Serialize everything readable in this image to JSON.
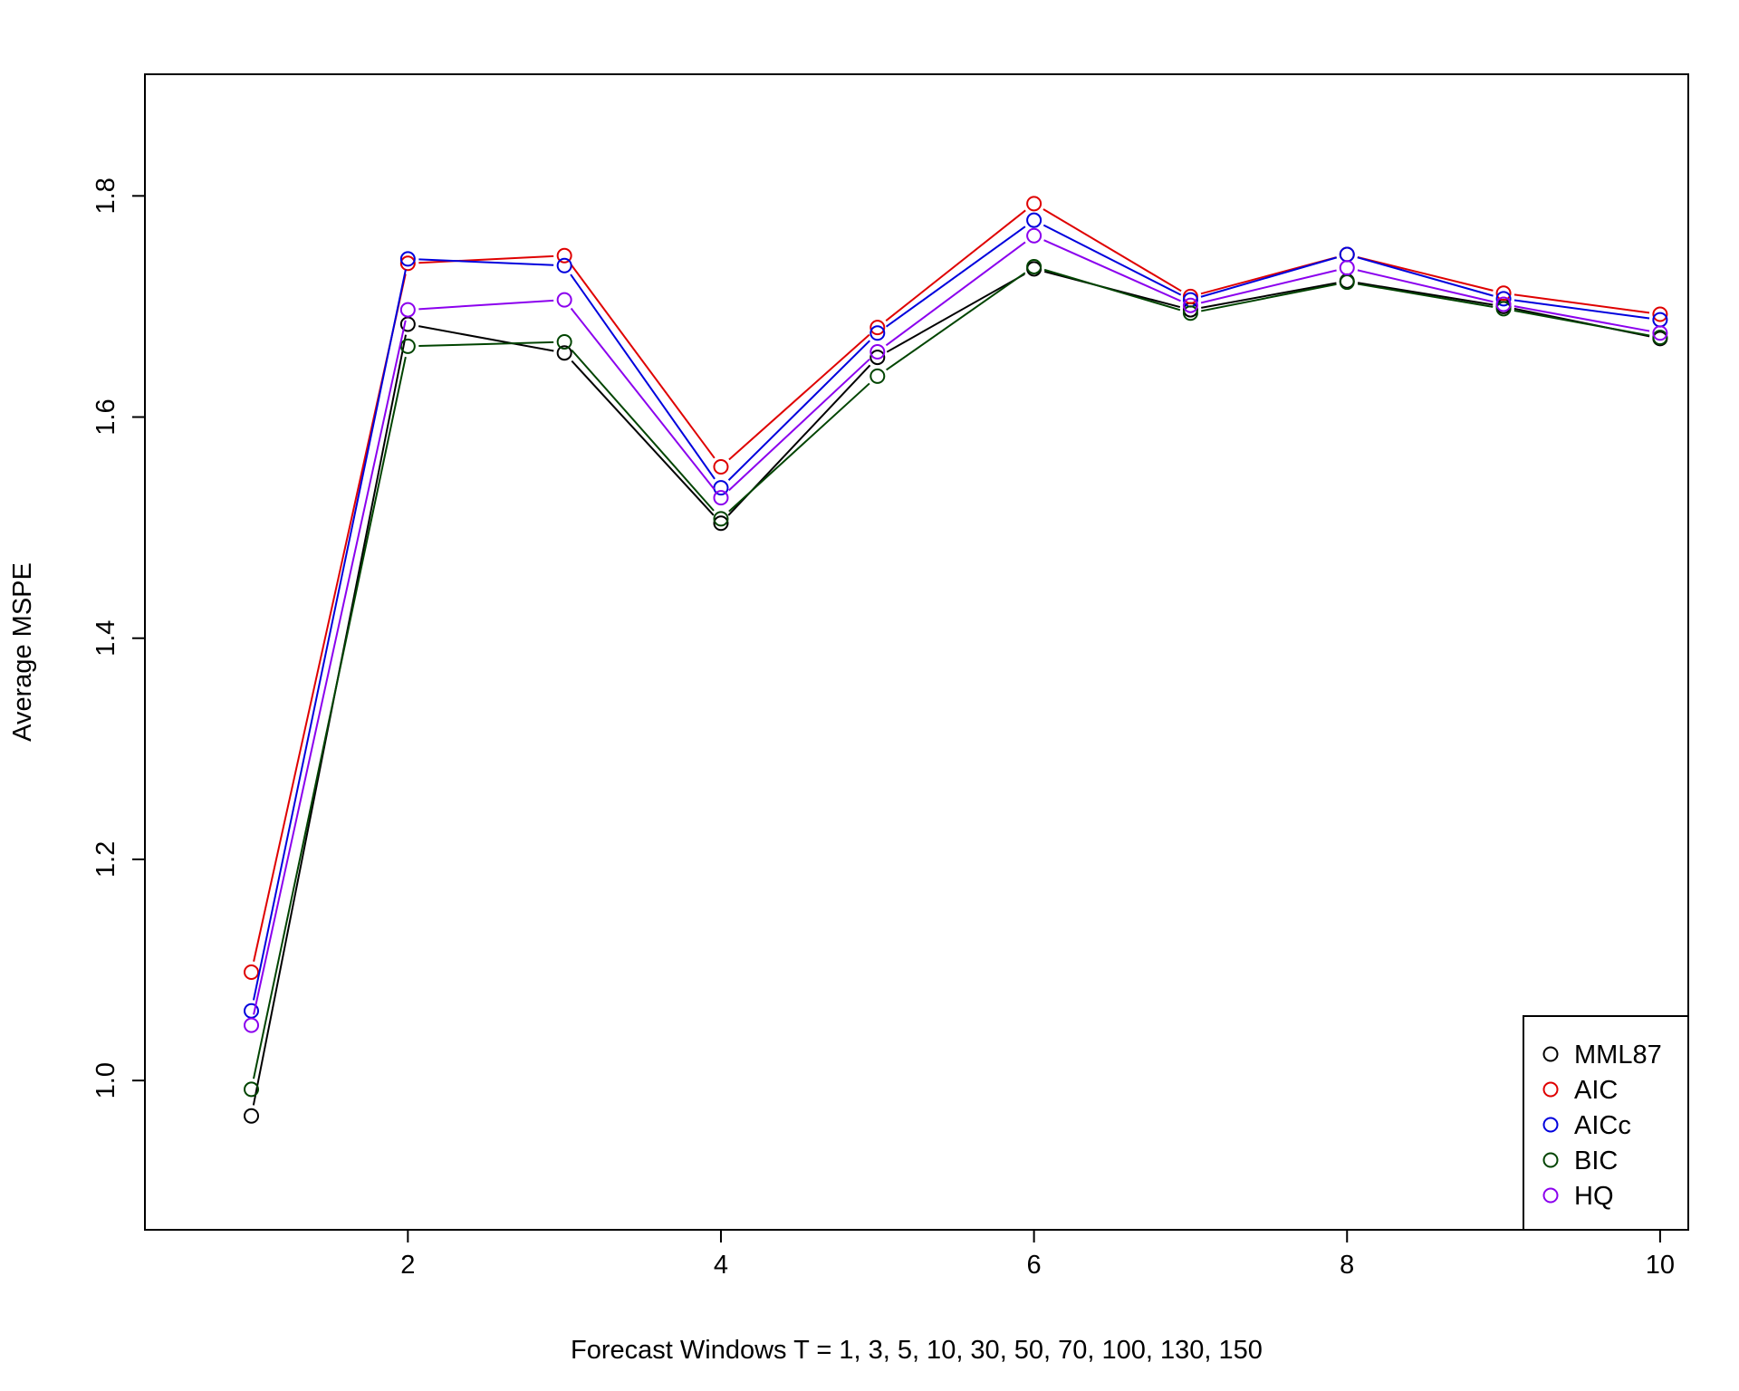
{
  "chart_data": {
    "type": "line",
    "title": "",
    "xlabel": "Forecast Windows T = 1, 3, 5, 10, 30, 50, 70, 100, 130, 150",
    "ylabel": "Average MSPE",
    "x": [
      1,
      2,
      3,
      4,
      5,
      6,
      7,
      8,
      9,
      10
    ],
    "xlim": [
      0.32,
      10.18
    ],
    "ylim": [
      0.865,
      1.91
    ],
    "x_ticks": [
      2,
      4,
      6,
      8,
      10
    ],
    "x_tick_labels": [
      "2",
      "4",
      "6",
      "8",
      "10"
    ],
    "y_ticks": [
      1.0,
      1.2,
      1.4,
      1.6,
      1.8
    ],
    "y_tick_labels": [
      "1.0",
      "1.2",
      "1.4",
      "1.6",
      "1.8"
    ],
    "grid": false,
    "legend_position": "bottom-right",
    "marker": "open-circle",
    "series": [
      {
        "name": "MML87",
        "color": "#000000",
        "values": [
          0.968,
          1.684,
          1.658,
          1.504,
          1.654,
          1.734,
          1.697,
          1.723,
          1.7,
          1.671
        ]
      },
      {
        "name": "AIC",
        "color": "#df0000",
        "values": [
          1.098,
          1.739,
          1.746,
          1.555,
          1.681,
          1.793,
          1.709,
          1.747,
          1.712,
          1.693
        ]
      },
      {
        "name": "AICc",
        "color": "#0000dd",
        "values": [
          1.063,
          1.743,
          1.737,
          1.536,
          1.676,
          1.778,
          1.706,
          1.747,
          1.707,
          1.688
        ]
      },
      {
        "name": "BIC",
        "color": "#004400",
        "values": [
          0.992,
          1.664,
          1.668,
          1.508,
          1.637,
          1.736,
          1.694,
          1.722,
          1.698,
          1.672
        ]
      },
      {
        "name": "HQ",
        "color": "#8b00ee",
        "values": [
          1.05,
          1.697,
          1.706,
          1.527,
          1.659,
          1.764,
          1.701,
          1.735,
          1.702,
          1.676
        ]
      }
    ]
  }
}
